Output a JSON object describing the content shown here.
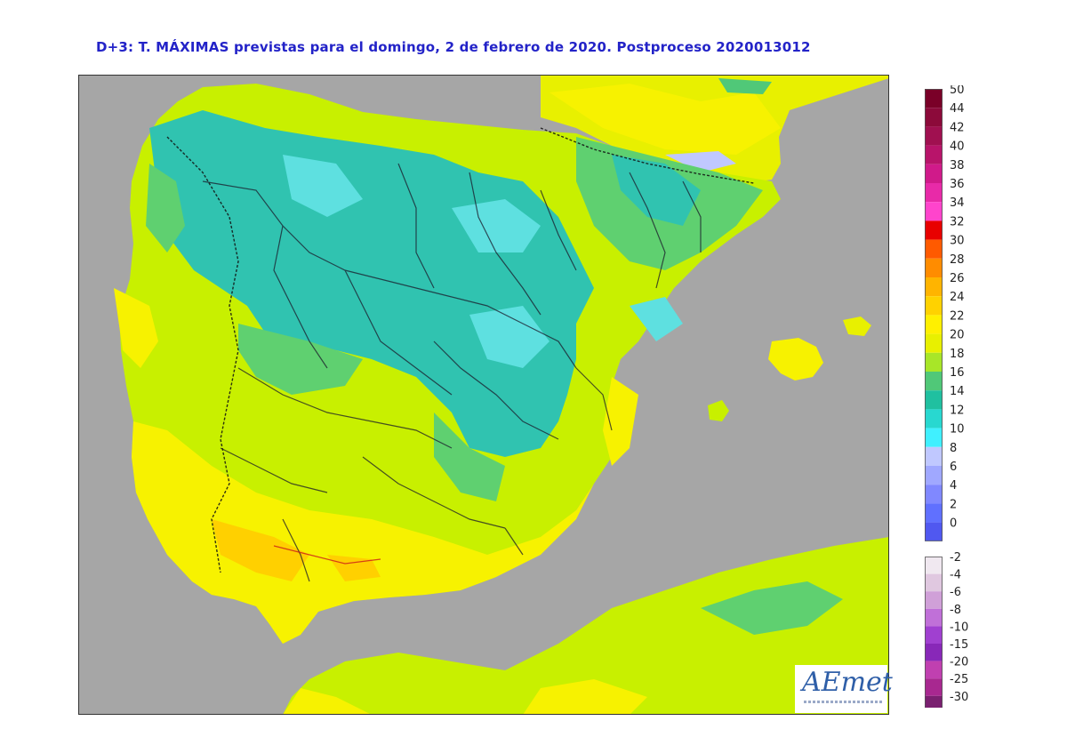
{
  "title": "D+3: T. MÁXIMAS previstas para el domingo, 2 de febrero de 2020. Postproceso 2020013012",
  "legend": {
    "positive": [
      {
        "label": "50",
        "color": "#7a0028"
      },
      {
        "label": "44",
        "color": "#8c0a3a"
      },
      {
        "label": "42",
        "color": "#a01050"
      },
      {
        "label": "40",
        "color": "#b8146a"
      },
      {
        "label": "38",
        "color": "#d01a8a"
      },
      {
        "label": "36",
        "color": "#e82aa8"
      },
      {
        "label": "34",
        "color": "#ff44cc"
      },
      {
        "label": "32",
        "color": "#e80000"
      },
      {
        "label": "30",
        "color": "#ff5a00"
      },
      {
        "label": "28",
        "color": "#ff8c00"
      },
      {
        "label": "26",
        "color": "#ffb400"
      },
      {
        "label": "24",
        "color": "#ffd200"
      },
      {
        "label": "22",
        "color": "#fff000"
      },
      {
        "label": "20",
        "color": "#e8f000"
      },
      {
        "label": "18",
        "color": "#a8e628"
      },
      {
        "label": "16",
        "color": "#50c878"
      },
      {
        "label": "14",
        "color": "#20c0a0"
      },
      {
        "label": "12",
        "color": "#28d8d0"
      },
      {
        "label": "10",
        "color": "#40f0ff"
      },
      {
        "label": "8",
        "color": "#c0c8ff"
      },
      {
        "label": "6",
        "color": "#a0a8ff"
      },
      {
        "label": "4",
        "color": "#8088ff"
      },
      {
        "label": "2",
        "color": "#6070ff"
      },
      {
        "label": "0",
        "color": "#5058f0"
      }
    ],
    "negative": [
      {
        "label": "-2",
        "color": "#f0e8f0"
      },
      {
        "label": "-4",
        "color": "#e0c8e0"
      },
      {
        "label": "-6",
        "color": "#d0a0d8"
      },
      {
        "label": "-8",
        "color": "#c070d8"
      },
      {
        "label": "-10",
        "color": "#a040d0"
      },
      {
        "label": "-15",
        "color": "#8828b8"
      },
      {
        "label": "-20",
        "color": "#c040b0"
      },
      {
        "label": "-25",
        "color": "#a82890"
      },
      {
        "label": "-30",
        "color": "#7a2070"
      }
    ]
  },
  "logo": {
    "text": "AEmet"
  },
  "colors": {
    "sea": "#a6a6a6",
    "warm_yellow": "#f7f200",
    "lime": "#c8f000",
    "green": "#5fd070",
    "teal": "#30c3b0",
    "cyan": "#5ee0e0",
    "orange": "#ffd000",
    "border": "#202020"
  }
}
